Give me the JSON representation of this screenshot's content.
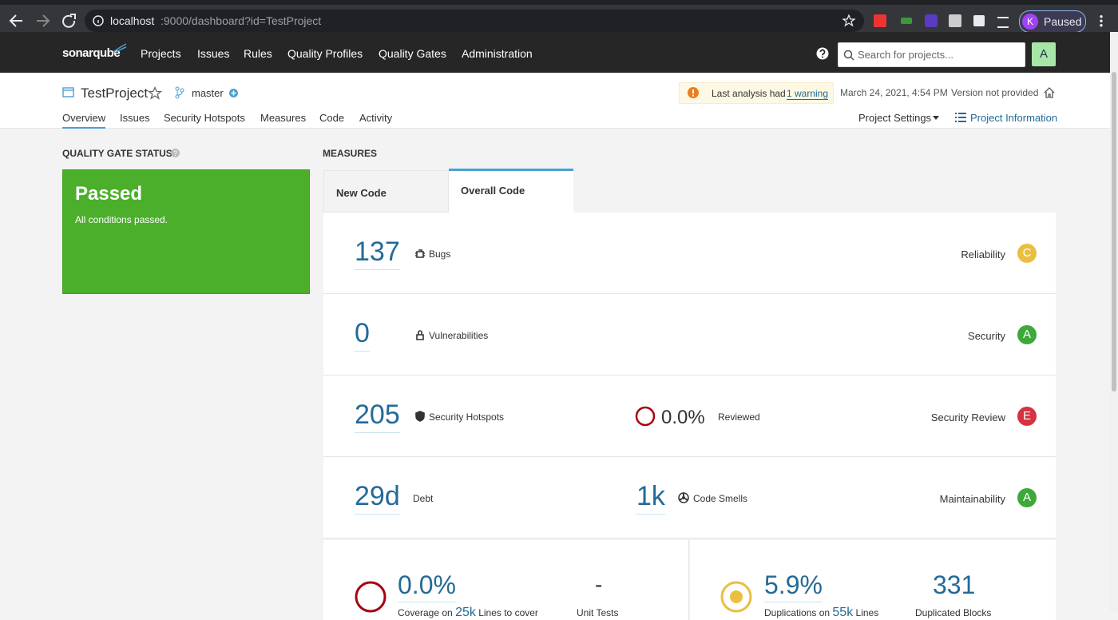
{
  "browser": {
    "url_host": "localhost",
    "url_path": ":9000/dashboard?id=TestProject",
    "profile_initial": "K",
    "profile_status": "Paused"
  },
  "nav": {
    "logo": "sonarqube",
    "items": [
      "Projects",
      "Issues",
      "Rules",
      "Quality Profiles",
      "Quality Gates",
      "Administration"
    ],
    "search_placeholder": "Search for projects...",
    "avatar": "A"
  },
  "project": {
    "name": "TestProject",
    "branch": "master",
    "warning_prefix": "Last analysis had",
    "warning_link": "1 warning",
    "date": "March 24, 2021, 4:54 PM",
    "version": "Version not provided",
    "tabs": [
      "Overview",
      "Issues",
      "Security Hotspots",
      "Measures",
      "Code",
      "Activity"
    ],
    "settings": "Project Settings",
    "information": "Project Information"
  },
  "quality_gate": {
    "heading": "QUALITY GATE STATUS",
    "status": "Passed",
    "message": "All conditions passed."
  },
  "measures": {
    "heading": "MEASURES",
    "tabs": [
      "New Code",
      "Overall Code"
    ],
    "rows": [
      {
        "value": "137",
        "label": "Bugs",
        "rating_label": "Reliability",
        "rating": "C",
        "rating_color": "#eabe3f"
      },
      {
        "value": "0",
        "label": "Vulnerabilities",
        "rating_label": "Security",
        "rating": "A",
        "rating_color": "#3fa83a"
      },
      {
        "value": "205",
        "label": "Security Hotspots",
        "secondary_value": "0.0%",
        "secondary_label": "Reviewed",
        "rating_label": "Security Review",
        "rating": "E",
        "rating_color": "#d4333f"
      },
      {
        "value": "29d",
        "label": "Debt",
        "secondary_value": "1k",
        "secondary_label": "Code Smells",
        "rating_label": "Maintainability",
        "rating": "A",
        "rating_color": "#3fa83a"
      }
    ],
    "coverage": {
      "value": "0.0%",
      "label_prefix": "Coverage on",
      "lines": "25k",
      "label_suffix": "Lines to cover",
      "tests_value": "-",
      "tests_label": "Unit Tests"
    },
    "duplications": {
      "value": "5.9%",
      "label_prefix": "Duplications on",
      "lines": "55k",
      "label_suffix": "Lines",
      "blocks_value": "331",
      "blocks_label": "Duplicated Blocks"
    }
  }
}
